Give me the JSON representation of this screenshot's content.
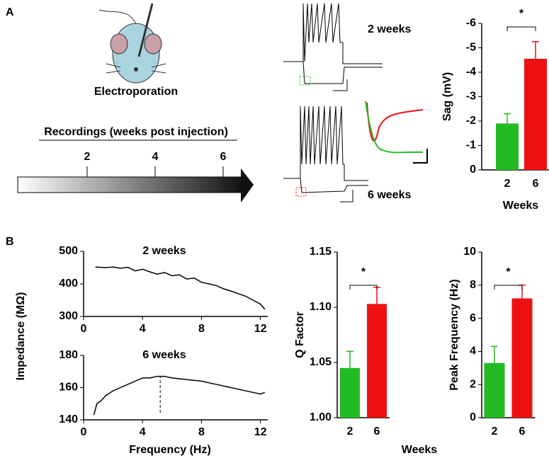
{
  "figure": {
    "panel_a": "A",
    "panel_b": "B",
    "electroporation": "Electroporation",
    "timeline": {
      "label": "Recordings (weeks post injection)",
      "ticks": [
        2,
        4,
        6
      ]
    },
    "trace_top": "2 weeks",
    "trace_bottom": "6 weeks",
    "impedance_ylabel": "Impedance (MΩ)",
    "frequency_xlabel": "Frequency (Hz)",
    "weeks_b": "Weeks"
  },
  "chart_data": [
    {
      "type": "bar",
      "ylabel": "Sag (mV)",
      "xlabel": "Weeks",
      "annotation": "*",
      "categories": [
        "2",
        "6"
      ],
      "values": [
        -1.9,
        -4.55
      ],
      "errors": [
        0.4,
        0.7
      ],
      "colors": [
        "#22bb22",
        "#ee1111"
      ],
      "ylim": [
        0,
        -6
      ],
      "yticks": [
        0,
        -1,
        -2,
        -3,
        -4,
        -5,
        -6
      ]
    },
    {
      "type": "line",
      "title": "2 weeks",
      "x": [
        0.8,
        1.5,
        2,
        2.5,
        3,
        3.5,
        4,
        4.5,
        5,
        5.5,
        6,
        6.5,
        7,
        7.5,
        8,
        8.5,
        9,
        9.5,
        10,
        10.5,
        11,
        11.5,
        12,
        12.3
      ],
      "values": [
        452,
        450,
        452,
        448,
        451,
        440,
        445,
        437,
        430,
        435,
        425,
        428,
        415,
        418,
        405,
        400,
        395,
        385,
        378,
        370,
        362,
        350,
        338,
        322
      ],
      "color": "#000000",
      "xlim": [
        0,
        12.5
      ],
      "xticks": [
        0,
        4,
        8,
        12
      ],
      "ylim": [
        300,
        500
      ],
      "yticks": [
        300,
        400,
        500
      ]
    },
    {
      "type": "line",
      "title": "6 weeks",
      "x": [
        0.7,
        0.9,
        1.2,
        1.5,
        2,
        2.5,
        3,
        3.5,
        4,
        4.5,
        5,
        5.5,
        6,
        7,
        8,
        9,
        10,
        11,
        11.5,
        12,
        12.3
      ],
      "values": [
        143,
        150,
        152,
        155,
        158,
        160,
        162,
        164,
        166,
        166,
        167,
        167,
        166,
        165,
        164,
        162,
        160,
        158,
        157,
        156,
        157
      ],
      "color": "#000000",
      "peak_x": 5.2,
      "xlim": [
        0,
        12.5
      ],
      "xticks": [
        0,
        4,
        8,
        12
      ],
      "ylim": [
        140,
        180
      ],
      "yticks": [
        140,
        160,
        180
      ]
    },
    {
      "type": "bar",
      "ylabel": "Q Factor",
      "annotation": "*",
      "categories": [
        "2",
        "6"
      ],
      "values": [
        1.045,
        1.103
      ],
      "errors": [
        0.015,
        0.015
      ],
      "colors": [
        "#22bb22",
        "#ee1111"
      ],
      "ylim": [
        1,
        1.15
      ],
      "yticks": [
        {
          "value": 1,
          "label": "1.00"
        },
        {
          "value": 1.05,
          "label": "1.05"
        },
        {
          "value": 1.1,
          "label": "1.10"
        },
        {
          "value": 1.15,
          "label": "1.15"
        }
      ]
    },
    {
      "type": "bar",
      "ylabel": "Peak Frequency (Hz)",
      "annotation": "*",
      "categories": [
        "2",
        "6"
      ],
      "values": [
        3.3,
        7.2
      ],
      "errors": [
        1.0,
        0.8
      ],
      "colors": [
        "#22bb22",
        "#ee1111"
      ],
      "ylim": [
        0,
        10
      ],
      "yticks": [
        0,
        2,
        4,
        6,
        8,
        10
      ]
    }
  ]
}
